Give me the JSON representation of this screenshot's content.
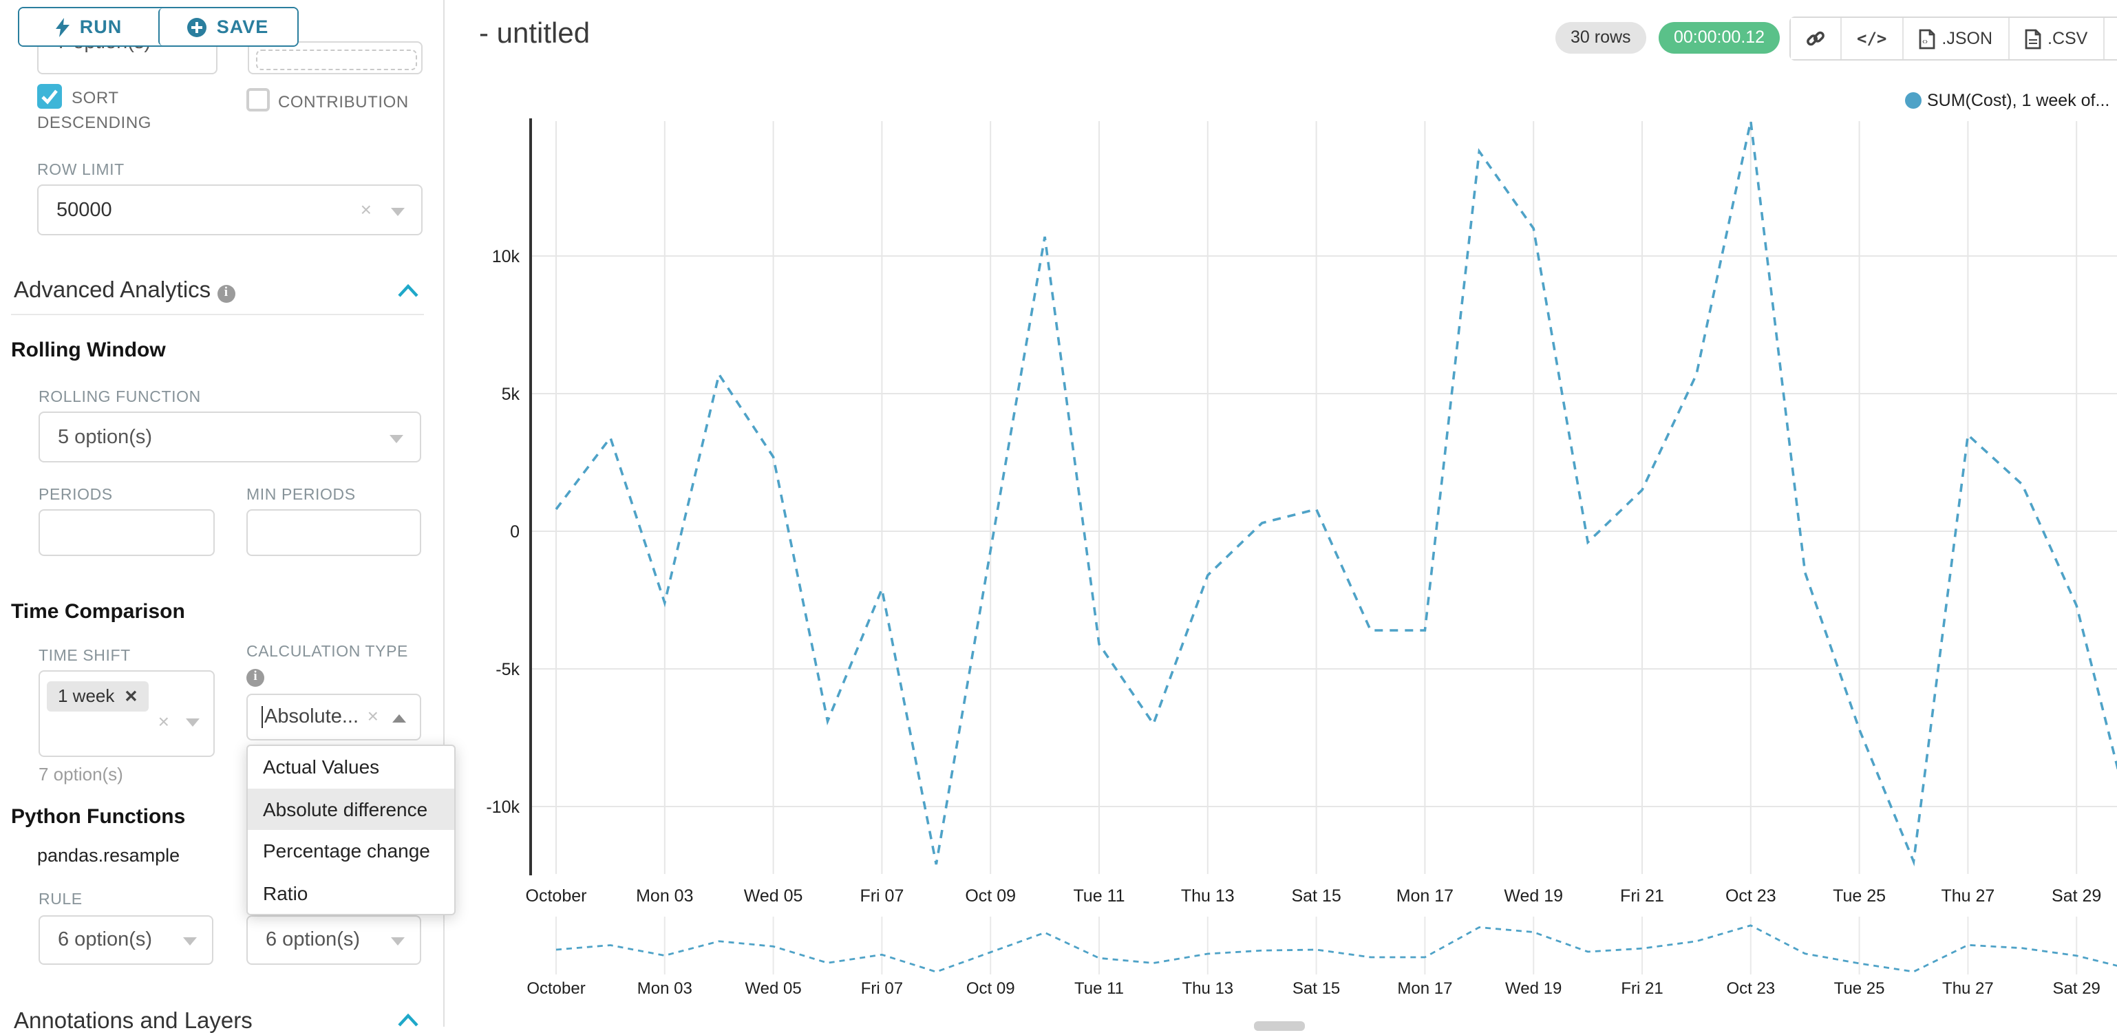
{
  "colors": {
    "accent": "#1fa8c9",
    "teal_button": "#2a7e9e",
    "checkbox": "#3db5d8",
    "line": "#4ea2c7",
    "success": "#5ac189"
  },
  "sidebar": {
    "run_label": "RUN",
    "save_label": "SAVE",
    "top_select_value": "7 option(s)",
    "sort_label_line1": "SORT",
    "sort_label_line2": "DESCENDING",
    "contribution_label": "CONTRIBUTION",
    "row_limit": {
      "label": "ROW LIMIT",
      "value": "50000"
    },
    "advanced_analytics_label": "Advanced Analytics",
    "rolling_window_label": "Rolling Window",
    "rolling_function": {
      "label": "ROLLING FUNCTION",
      "value": "5 option(s)"
    },
    "periods_label": "PERIODS",
    "min_periods_label": "MIN PERIODS",
    "time_comparison_label": "Time Comparison",
    "time_shift": {
      "label": "TIME SHIFT",
      "tag": "1 week",
      "hint": "7 option(s)"
    },
    "calculation_type": {
      "label": "CALCULATION TYPE",
      "value": "Absolute...",
      "options": [
        "Actual Values",
        "Absolute difference",
        "Percentage change",
        "Ratio"
      ],
      "selected_option": "Absolute difference"
    },
    "python_functions_label": "Python Functions",
    "pandas_resample_label": "pandas.resample",
    "rule": {
      "label": "RULE",
      "value_left": "6 option(s)",
      "value_right": "6 option(s)"
    },
    "annotations_label": "Annotations and Layers"
  },
  "header": {
    "title": "- untitled",
    "rows_badge": "30 rows",
    "timer_badge": "00:00:00.12",
    "json_label": ".JSON",
    "csv_label": ".CSV"
  },
  "chart_data": {
    "type": "line",
    "title": "",
    "legend": "SUM(Cost), 1 week of...",
    "legend_position": "top-right",
    "line_style": "dashed",
    "color": "#4ea2c7",
    "grid": true,
    "categories": [
      "Oct 01",
      "Oct 02",
      "Oct 03",
      "Oct 04",
      "Oct 05",
      "Oct 06",
      "Oct 07",
      "Oct 08",
      "Oct 09",
      "Oct 10",
      "Oct 11",
      "Oct 12",
      "Oct 13",
      "Oct 14",
      "Oct 15",
      "Oct 16",
      "Oct 17",
      "Oct 18",
      "Oct 19",
      "Oct 20",
      "Oct 21",
      "Oct 22",
      "Oct 23",
      "Oct 24",
      "Oct 25",
      "Oct 26",
      "Oct 27",
      "Oct 28",
      "Oct 29",
      "Oct 30"
    ],
    "series": [
      {
        "name": "SUM(Cost), 1 week offset",
        "values": [
          800,
          3400,
          -2600,
          5700,
          2700,
          -6900,
          -2100,
          -12100,
          -700,
          10700,
          -4100,
          -7000,
          -1600,
          300,
          800,
          -3600,
          -3600,
          13800,
          11000,
          -400,
          1500,
          5700,
          14900,
          -1500,
          -7200,
          -12000,
          3500,
          1700,
          -2700,
          -10500
        ]
      }
    ],
    "x_axis": {
      "tick_labels": [
        "October",
        "Mon 03",
        "Wed 05",
        "Fri 07",
        "Oct 09",
        "Tue 11",
        "Thu 13",
        "Sat 15",
        "Mon 17",
        "Wed 19",
        "Fri 21",
        "Oct 23",
        "Tue 25",
        "Thu 27",
        "Sat 29"
      ]
    },
    "y_axis": {
      "ticks": [
        {
          "label": "10k",
          "value": 10000
        },
        {
          "label": "5k",
          "value": 5000
        },
        {
          "label": "0",
          "value": 0
        },
        {
          "label": "-5k",
          "value": -5000
        },
        {
          "label": "-10k",
          "value": -10000
        }
      ]
    },
    "ylim": [
      -12750,
      14900
    ],
    "mini_chart": true
  }
}
